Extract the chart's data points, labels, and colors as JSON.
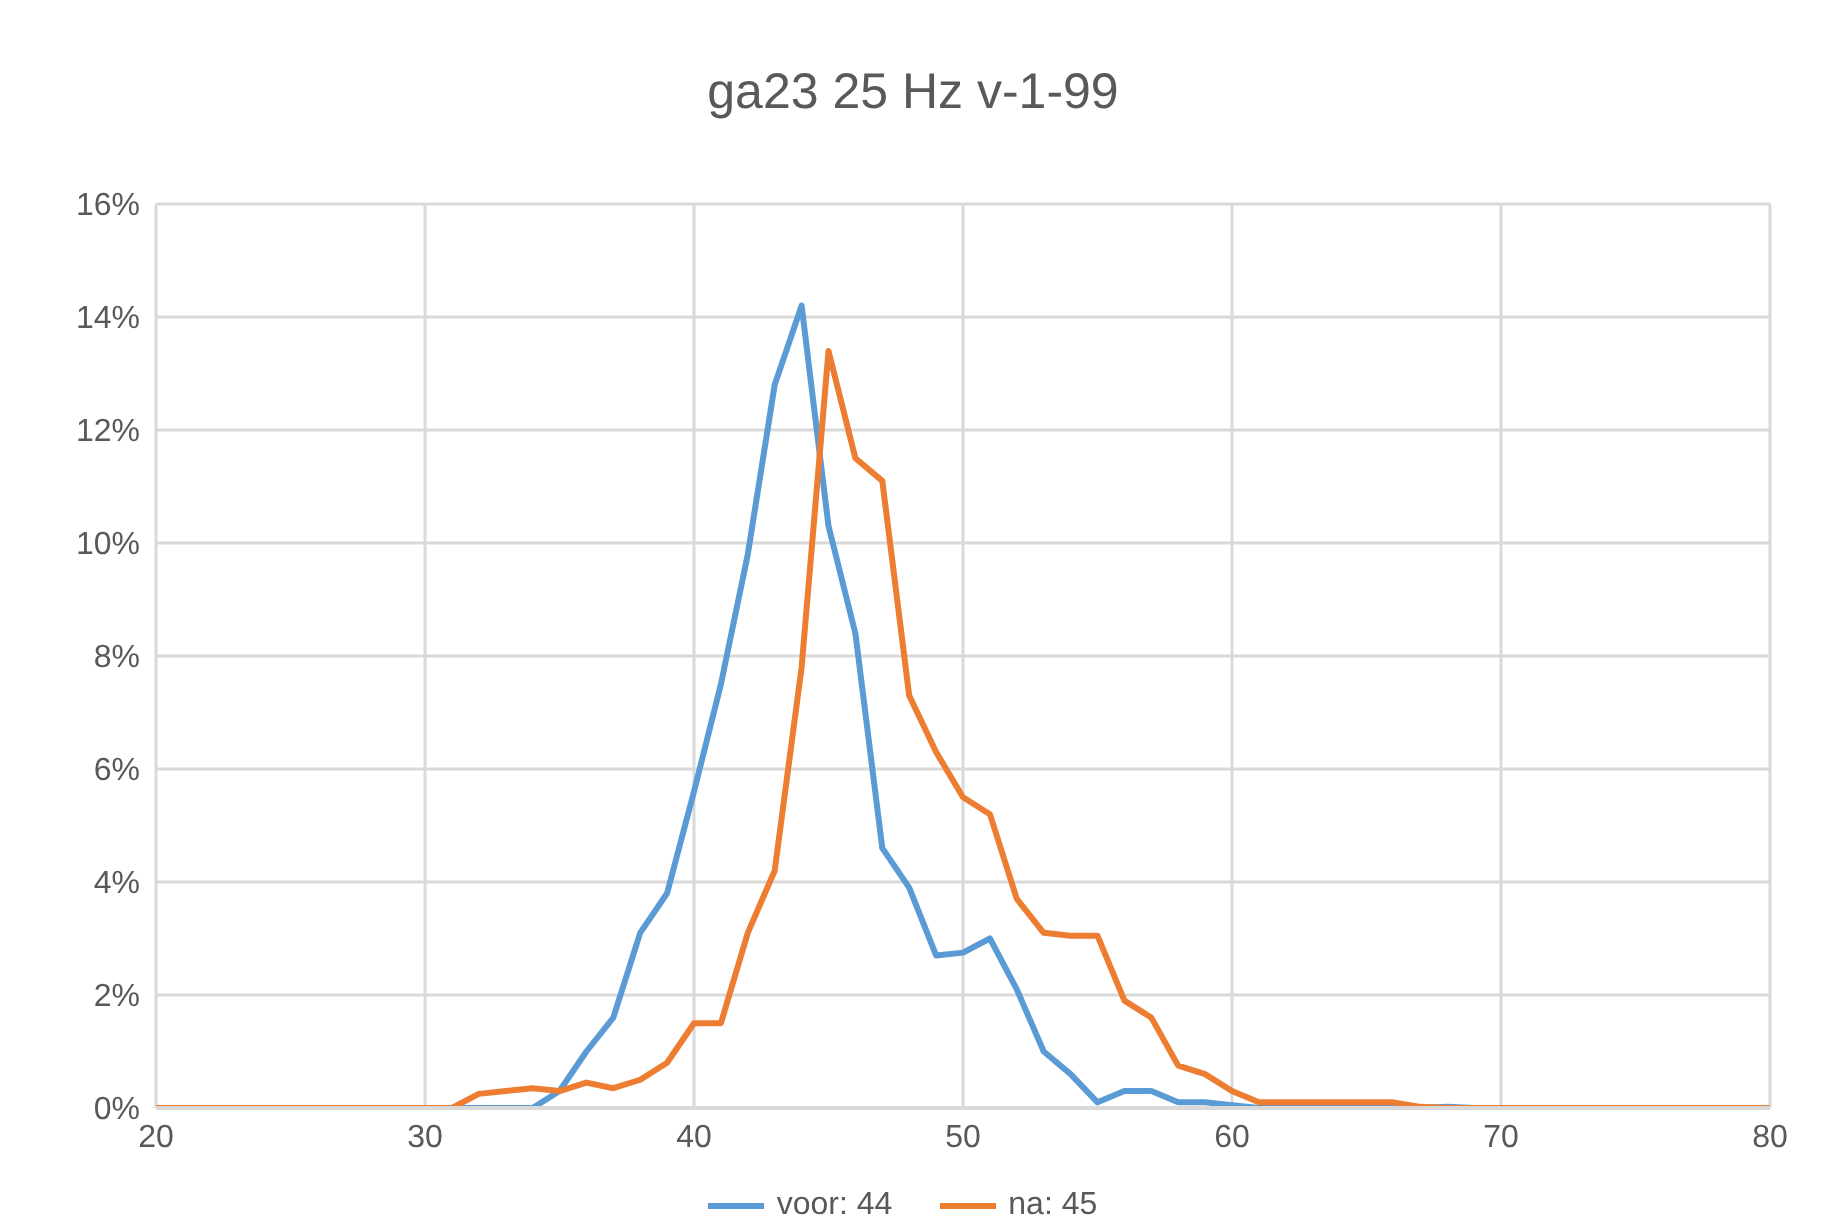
{
  "chart_data": {
    "type": "line",
    "title": "ga23 25 Hz v-1-99",
    "x": [
      20,
      21,
      22,
      23,
      24,
      25,
      26,
      27,
      28,
      29,
      30,
      31,
      32,
      33,
      34,
      35,
      36,
      37,
      38,
      39,
      40,
      41,
      42,
      43,
      44,
      45,
      46,
      47,
      48,
      49,
      50,
      51,
      52,
      53,
      54,
      55,
      56,
      57,
      58,
      59,
      60,
      61,
      62,
      63,
      64,
      65,
      66,
      67,
      68,
      69,
      70,
      71,
      72,
      73,
      74,
      75,
      76,
      77,
      78,
      79,
      80
    ],
    "series": [
      {
        "name": "voor: 44",
        "color": "#5b9bd5",
        "values": [
          null,
          null,
          null,
          null,
          null,
          null,
          null,
          null,
          null,
          null,
          0,
          0,
          0,
          0,
          0,
          0.3,
          1.0,
          1.6,
          3.1,
          3.8,
          5.6,
          7.5,
          9.8,
          12.8,
          14.2,
          10.3,
          8.4,
          4.6,
          3.9,
          2.7,
          2.75,
          3.0,
          2.1,
          1.0,
          0.6,
          0.1,
          0.3,
          0.3,
          0.1,
          0.1,
          0.05,
          0,
          0,
          0,
          0,
          0,
          0,
          0,
          0.02,
          0,
          0,
          null,
          null,
          null,
          null,
          null,
          null,
          null,
          null,
          null,
          null
        ]
      },
      {
        "name": "na: 45",
        "color": "#ed7d31",
        "values": [
          0,
          0,
          0,
          0,
          0,
          0,
          0,
          0,
          0,
          0,
          0,
          0,
          0.25,
          0.3,
          0.35,
          0.3,
          0.45,
          0.35,
          0.5,
          0.8,
          1.5,
          1.5,
          3.1,
          4.2,
          7.8,
          13.4,
          11.5,
          11.1,
          7.3,
          6.3,
          5.5,
          5.2,
          3.7,
          3.1,
          3.05,
          3.05,
          1.9,
          1.6,
          0.75,
          0.6,
          0.3,
          0.1,
          0.1,
          0.1,
          0.1,
          0.1,
          0.1,
          0.02,
          0,
          0,
          0,
          0,
          0,
          0,
          0,
          0,
          0,
          0,
          0,
          0,
          0
        ]
      }
    ],
    "xlim": [
      20,
      80
    ],
    "xticks": [
      20,
      30,
      40,
      50,
      60,
      70,
      80
    ],
    "ylim": [
      0,
      16
    ],
    "yticks": [
      {
        "value": 0,
        "label": "0%"
      },
      {
        "value": 2,
        "label": "2%"
      },
      {
        "value": 4,
        "label": "4%"
      },
      {
        "value": 6,
        "label": "6%"
      },
      {
        "value": 8,
        "label": "8%"
      },
      {
        "value": 10,
        "label": "10%"
      },
      {
        "value": 12,
        "label": "12%"
      },
      {
        "value": 14,
        "label": "14%"
      },
      {
        "value": 16,
        "label": "16%"
      }
    ],
    "grid": true,
    "legend": "bottom",
    "marker": "none",
    "line_style": "solid"
  }
}
